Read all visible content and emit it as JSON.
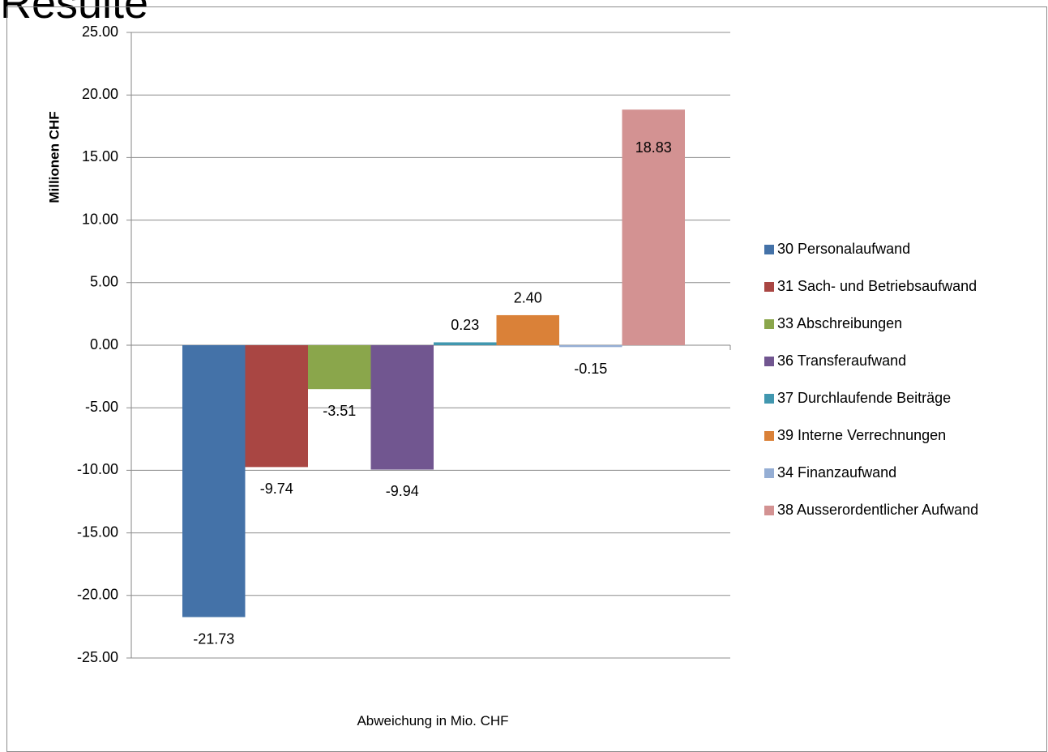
{
  "page": {
    "title": "Resulte"
  },
  "chart_data": {
    "type": "bar",
    "categories": [
      "Abweichung in Mio. CHF"
    ],
    "series": [
      {
        "name": "30 Personalaufwand",
        "values": [
          -21.73
        ],
        "color": "#4472a8",
        "label": "-21.73"
      },
      {
        "name": "31 Sach- und Betriebsaufwand",
        "values": [
          -9.74
        ],
        "color": "#a94643",
        "label": "-9.74"
      },
      {
        "name": "33 Abschreibungen",
        "values": [
          -3.51
        ],
        "color": "#8aa64b",
        "label": "-3.51"
      },
      {
        "name": "36 Transferaufwand",
        "values": [
          -9.94
        ],
        "color": "#715690",
        "label": "-9.94"
      },
      {
        "name": "37 Durchlaufende Beiträge",
        "values": [
          0.23
        ],
        "color": "#4197af",
        "label": "0.23"
      },
      {
        "name": "39 Interne Verrechnungen",
        "values": [
          2.4
        ],
        "color": "#da8138",
        "label": "2.40"
      },
      {
        "name": "34 Finanzaufwand",
        "values": [
          -0.15
        ],
        "color": "#95aed4",
        "label": "-0.15"
      },
      {
        "name": "38 Ausserordentlicher Aufwand",
        "values": [
          18.83
        ],
        "color": "#d39292",
        "label": "18.83"
      }
    ],
    "ylabel": "Millionen CHF",
    "xlabel": "Abweichung in Mio. CHF",
    "ylim": [
      -25,
      25
    ],
    "yticks": [
      "25.00",
      "20.00",
      "15.00",
      "10.00",
      "5.00",
      "0.00",
      "-5.00",
      "-10.00",
      "-15.00",
      "-20.00",
      "-25.00"
    ],
    "grid": true,
    "legend_position": "right"
  }
}
